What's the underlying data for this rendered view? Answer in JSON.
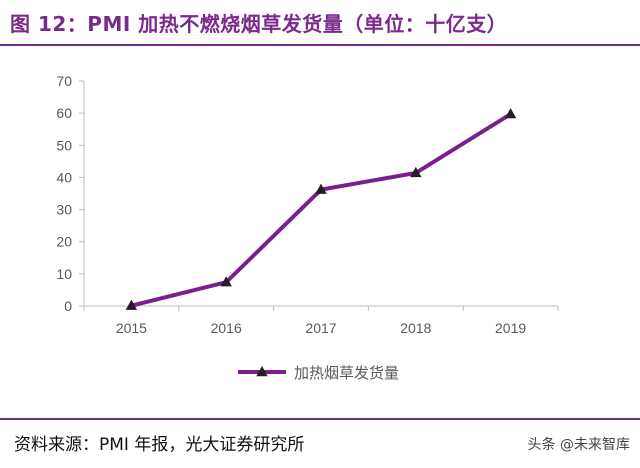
{
  "header": {
    "title": "图 12：PMI 加热不燃烧烟草发货量（单位：十亿支）"
  },
  "footer": {
    "source": "资料来源：PMI 年报，光大证券研究所",
    "watermark": "头条 @未来智库"
  },
  "colors": {
    "accent": "#7b2a8c",
    "line": "#7b1f8e",
    "marker": "#2b1a2e",
    "axis": "#bfbfbf",
    "text": "#595959"
  },
  "chart_data": {
    "type": "line",
    "categories": [
      "2015",
      "2016",
      "2017",
      "2018",
      "2019"
    ],
    "series": [
      {
        "name": "加热烟草发货量",
        "values": [
          0.1,
          7.4,
          36.2,
          41.4,
          59.7
        ]
      }
    ],
    "ylim": [
      0,
      70
    ],
    "yticks": [
      0,
      10,
      20,
      30,
      40,
      50,
      60,
      70
    ],
    "grid": false,
    "legend": "bottom",
    "marker": "triangle"
  }
}
